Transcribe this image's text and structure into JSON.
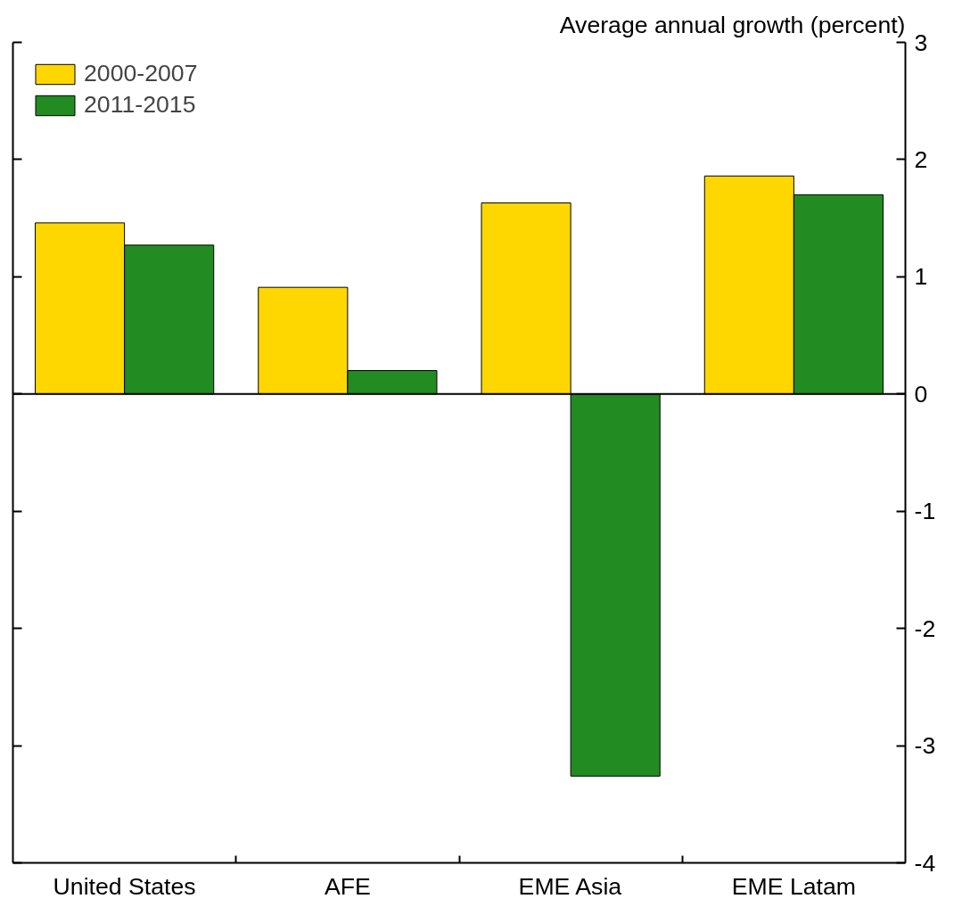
{
  "chart_data": {
    "type": "bar",
    "ylabel": "Average annual growth (percent)",
    "categories": [
      "United States",
      "AFE",
      "EME Asia",
      "EME Latam"
    ],
    "series": [
      {
        "name": "2000-2007",
        "color": "#ffd700",
        "values": [
          1.46,
          0.91,
          1.63,
          1.86
        ]
      },
      {
        "name": "2011-2015",
        "color": "#228b22",
        "values": [
          1.27,
          0.2,
          -3.26,
          1.7
        ]
      }
    ],
    "ref_lines": [
      {
        "axis": "y",
        "value": 0,
        "color": "#000000"
      }
    ],
    "ylim": [
      -4,
      3
    ],
    "yticks": [
      -4,
      -3,
      -2,
      -1,
      0,
      1,
      2,
      3
    ],
    "grid": false,
    "legend": "top left"
  }
}
